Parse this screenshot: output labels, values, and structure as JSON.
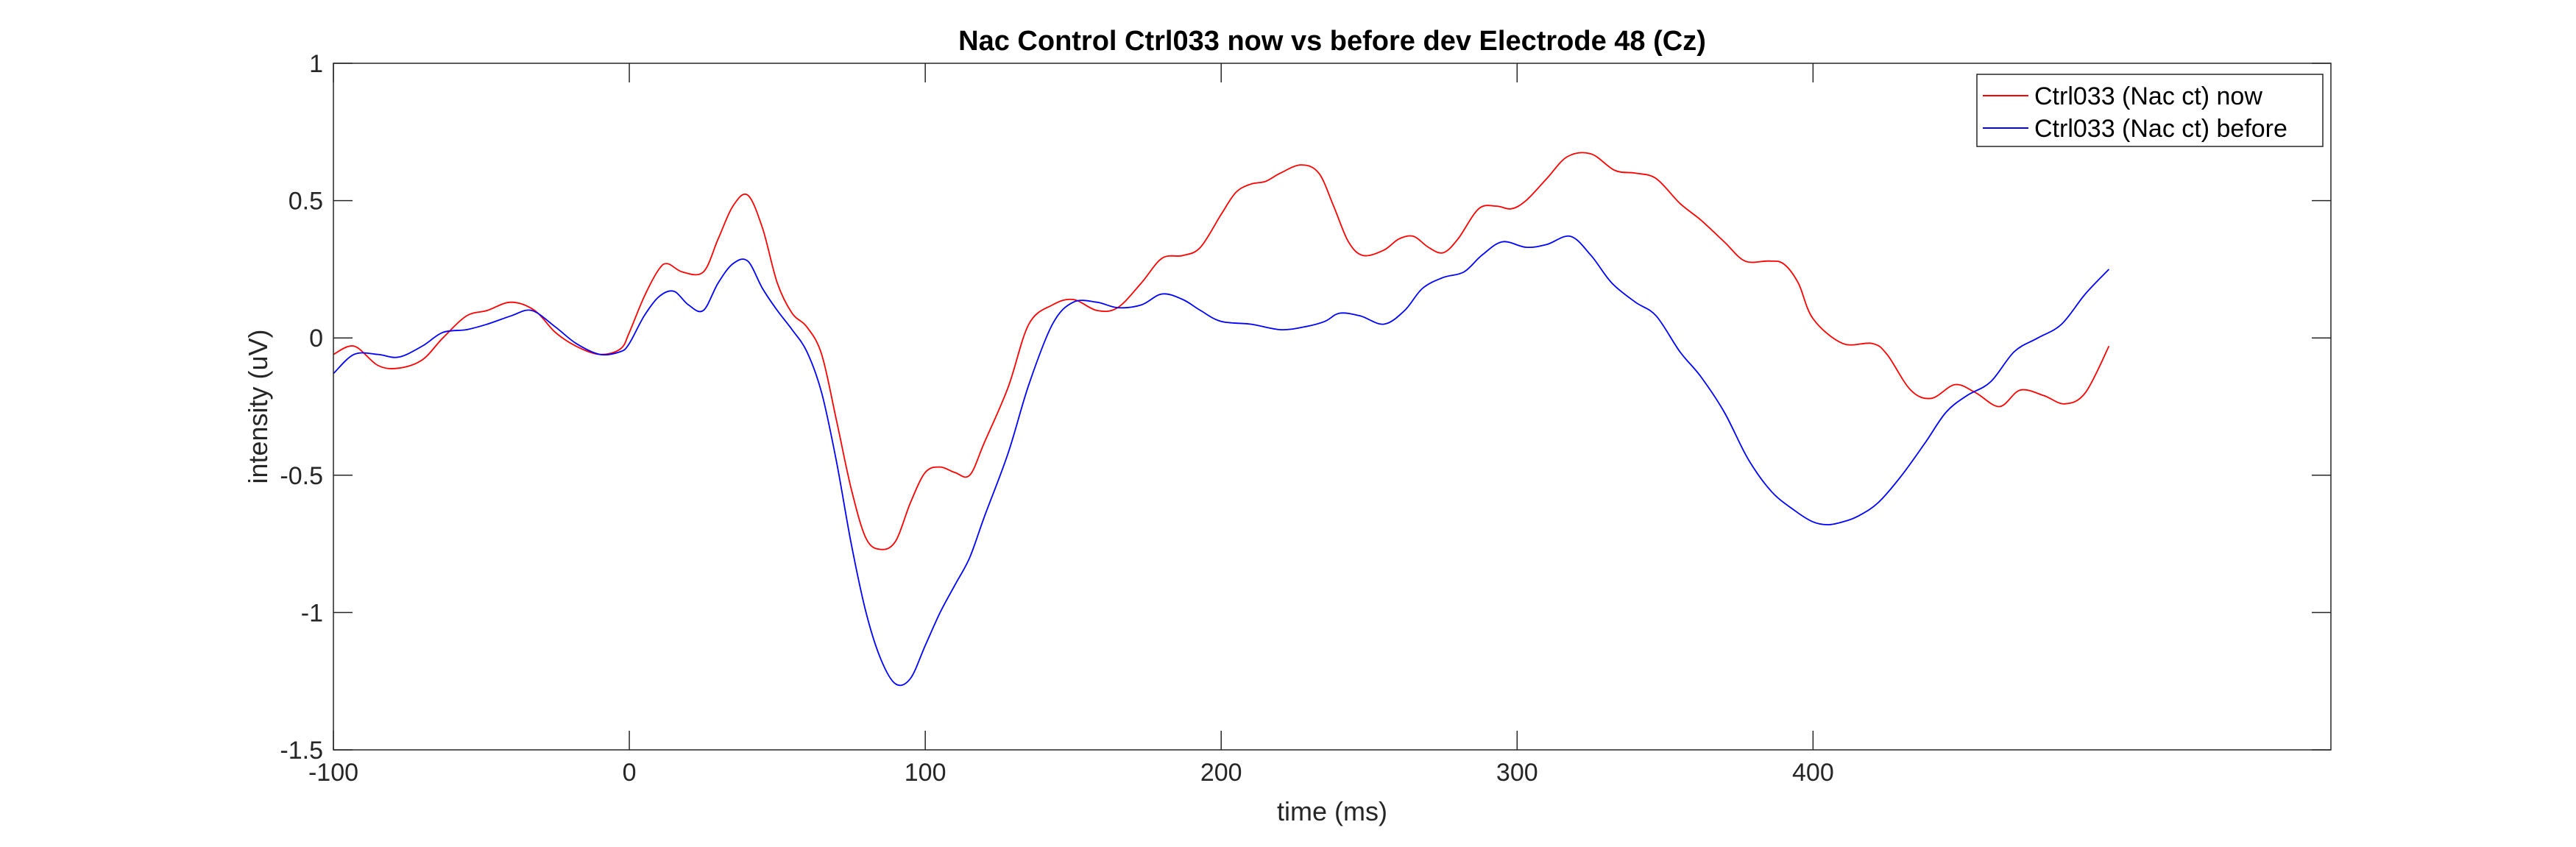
{
  "chart_data": {
    "type": "line",
    "title": "Nac Control Ctrl033 now vs before dev Electrode 48 (Cz)",
    "xlabel": "time (ms)",
    "ylabel": "intensity (uV)",
    "xlim": [
      -100,
      575
    ],
    "ylim": [
      -1.5,
      1
    ],
    "xticks": [
      -100,
      0,
      100,
      200,
      300,
      400
    ],
    "yticks": [
      -1.5,
      -1,
      -0.5,
      0,
      0.5,
      1
    ],
    "xtick_labels": [
      "-100",
      "0",
      "100",
      "200",
      "300",
      "400"
    ],
    "ytick_labels": [
      "-1.5",
      "-1",
      "-0.5",
      "0",
      "0.5",
      "1"
    ],
    "grid": false,
    "legend_position": "top-right",
    "series": [
      {
        "name": "Ctrl033 (Nac ct) now",
        "color": "#ff0000",
        "x": [
          -100,
          -93,
          -85,
          -78,
          -70,
          -63,
          -55,
          -48,
          -40,
          -32,
          -25,
          -18,
          -10,
          -3,
          0,
          5,
          10,
          13,
          18,
          25,
          30,
          35,
          40,
          45,
          50,
          55,
          60,
          65,
          70,
          75,
          80,
          85,
          90,
          95,
          100,
          105,
          110,
          115,
          120,
          128,
          135,
          143,
          150,
          158,
          165,
          173,
          180,
          187,
          193,
          200,
          205,
          210,
          215,
          220,
          227,
          233,
          238,
          243,
          248,
          255,
          260,
          265,
          270,
          275,
          280,
          287,
          293,
          298,
          303,
          310,
          317,
          325,
          333,
          340,
          347,
          355,
          362,
          370,
          377,
          385,
          390,
          395,
          400,
          410,
          420,
          425,
          433,
          440,
          448,
          455,
          463,
          470,
          478,
          485,
          492,
          500
        ],
        "y": [
          -0.06,
          -0.03,
          -0.1,
          -0.11,
          -0.08,
          0.0,
          0.08,
          0.1,
          0.13,
          0.1,
          0.02,
          -0.03,
          -0.06,
          -0.04,
          0.02,
          0.15,
          0.25,
          0.27,
          0.24,
          0.24,
          0.36,
          0.48,
          0.52,
          0.4,
          0.2,
          0.09,
          0.04,
          -0.06,
          -0.3,
          -0.55,
          -0.73,
          -0.77,
          -0.74,
          -0.6,
          -0.49,
          -0.47,
          -0.49,
          -0.5,
          -0.38,
          -0.18,
          0.05,
          0.12,
          0.14,
          0.1,
          0.11,
          0.2,
          0.29,
          0.3,
          0.33,
          0.45,
          0.53,
          0.56,
          0.57,
          0.6,
          0.63,
          0.6,
          0.48,
          0.35,
          0.3,
          0.32,
          0.36,
          0.37,
          0.33,
          0.31,
          0.36,
          0.47,
          0.48,
          0.47,
          0.5,
          0.58,
          0.66,
          0.67,
          0.61,
          0.6,
          0.58,
          0.49,
          0.43,
          0.35,
          0.28,
          0.28,
          0.27,
          0.2,
          0.07,
          -0.02,
          -0.02,
          -0.06,
          -0.19,
          -0.22,
          -0.17,
          -0.2,
          -0.25,
          -0.19,
          -0.21,
          -0.24,
          -0.2,
          -0.03
        ]
      },
      {
        "name": "Ctrl033 (Nac ct) before",
        "color": "#0000ff",
        "x": [
          -100,
          -93,
          -85,
          -78,
          -70,
          -63,
          -55,
          -48,
          -40,
          -33,
          -25,
          -18,
          -10,
          -3,
          0,
          5,
          10,
          15,
          20,
          25,
          30,
          35,
          40,
          45,
          50,
          55,
          60,
          65,
          70,
          75,
          80,
          85,
          90,
          95,
          100,
          105,
          110,
          115,
          120,
          128,
          135,
          143,
          150,
          158,
          165,
          173,
          180,
          187,
          193,
          200,
          210,
          220,
          228,
          235,
          240,
          247,
          255,
          262,
          268,
          275,
          282,
          288,
          295,
          303,
          310,
          318,
          325,
          332,
          340,
          347,
          355,
          362,
          370,
          378,
          386,
          394,
          400,
          405,
          410,
          415,
          422,
          430,
          438,
          445,
          452,
          460,
          468,
          476,
          484,
          492,
          500
        ],
        "y": [
          -0.13,
          -0.06,
          -0.06,
          -0.07,
          -0.03,
          0.02,
          0.03,
          0.05,
          0.08,
          0.1,
          0.04,
          -0.02,
          -0.06,
          -0.05,
          -0.02,
          0.08,
          0.15,
          0.17,
          0.12,
          0.1,
          0.2,
          0.27,
          0.28,
          0.18,
          0.1,
          0.03,
          -0.05,
          -0.2,
          -0.45,
          -0.75,
          -1.0,
          -1.17,
          -1.26,
          -1.24,
          -1.12,
          -1.0,
          -0.9,
          -0.8,
          -0.65,
          -0.42,
          -0.17,
          0.05,
          0.13,
          0.13,
          0.11,
          0.12,
          0.16,
          0.14,
          0.1,
          0.06,
          0.05,
          0.03,
          0.04,
          0.06,
          0.09,
          0.08,
          0.05,
          0.1,
          0.18,
          0.22,
          0.24,
          0.3,
          0.35,
          0.33,
          0.34,
          0.37,
          0.3,
          0.2,
          0.13,
          0.08,
          -0.05,
          -0.14,
          -0.27,
          -0.44,
          -0.56,
          -0.63,
          -0.67,
          -0.68,
          -0.67,
          -0.65,
          -0.6,
          -0.5,
          -0.38,
          -0.27,
          -0.21,
          -0.16,
          -0.05,
          0.0,
          0.05,
          0.16,
          0.25
        ]
      }
    ]
  }
}
